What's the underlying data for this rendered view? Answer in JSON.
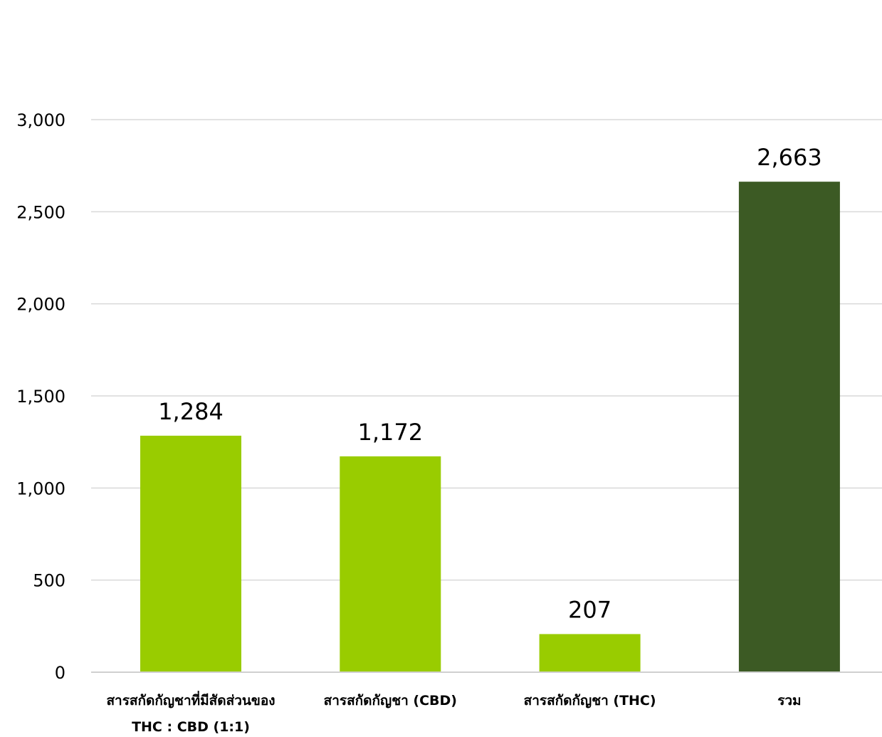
{
  "chart_data": {
    "type": "bar",
    "title": "",
    "xlabel": "",
    "ylabel": "",
    "categories": [
      [
        "สารสกัดกัญชาที่มีสัดส่วนของ",
        "THC : CBD (1:1)"
      ],
      [
        "สารสกัดกัญชา (CBD)"
      ],
      [
        "สารสกัดกัญชา (THC)"
      ],
      [
        "รวม"
      ]
    ],
    "values": [
      1284,
      1172,
      207,
      2663
    ],
    "data_labels": [
      "1,284",
      "1,172",
      "207",
      "2,663"
    ],
    "bar_colors": [
      "#99cc00",
      "#99cc00",
      "#99cc00",
      "#3c5a24"
    ],
    "ylim": [
      0,
      3000
    ],
    "yticks": [
      0,
      500,
      1000,
      1500,
      2000,
      2500,
      3000
    ],
    "ytick_labels": [
      "0",
      "500",
      "1,000",
      "1,500",
      "2,000",
      "2,500",
      "3,000"
    ],
    "grid": true,
    "legend": "none"
  }
}
